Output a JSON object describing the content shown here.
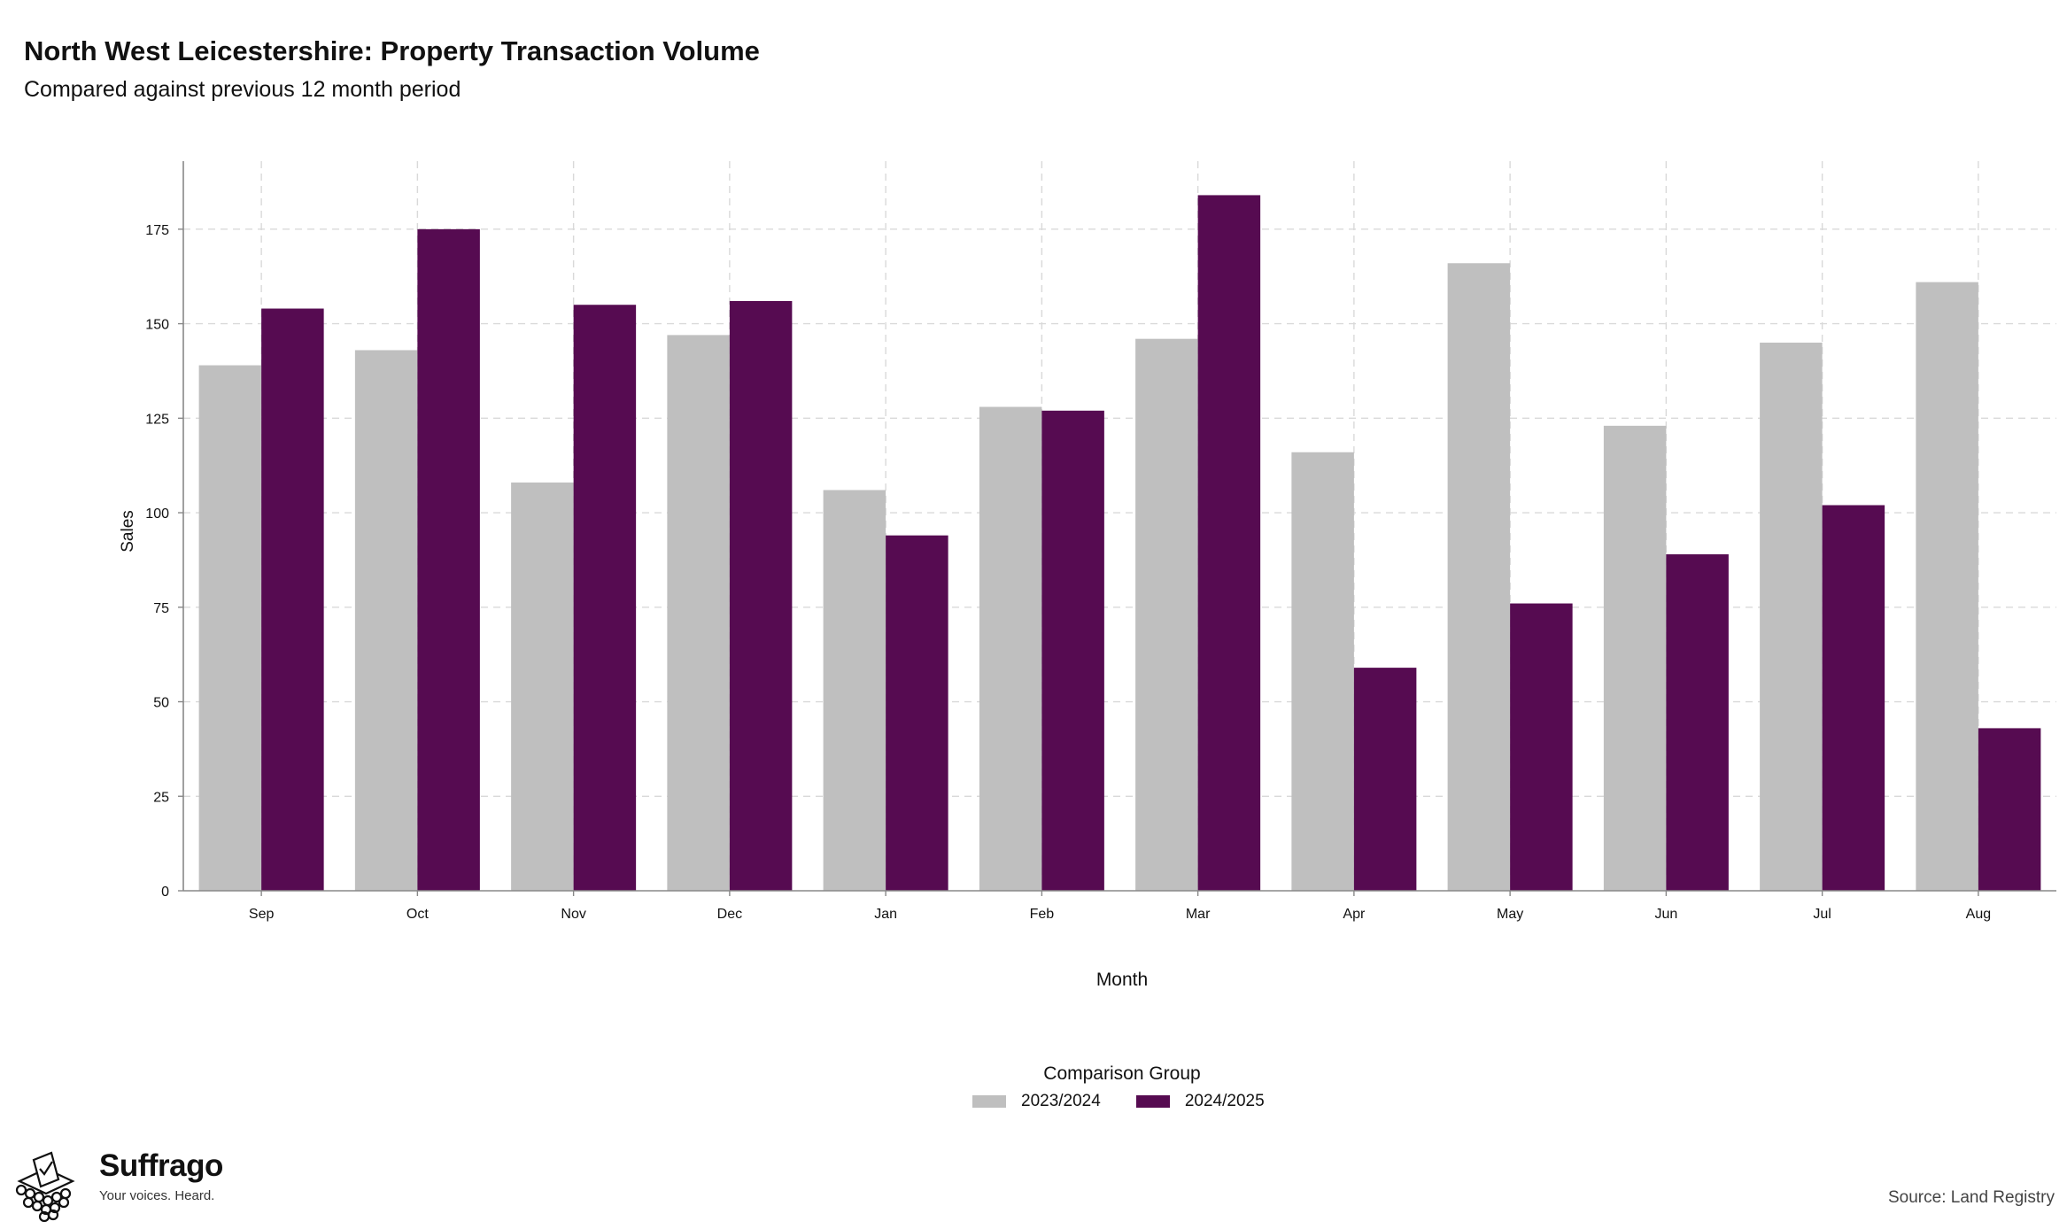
{
  "header": {
    "title": "North West Leicestershire: Property Transaction Volume",
    "subtitle": "Compared against previous 12 month period"
  },
  "chart_data": {
    "type": "bar",
    "title": "North West Leicestershire: Property Transaction Volume",
    "subtitle": "Compared against previous 12 month period",
    "xlabel": "Month",
    "ylabel": "Sales",
    "categories": [
      "Sep",
      "Oct",
      "Nov",
      "Dec",
      "Jan",
      "Feb",
      "Mar",
      "Apr",
      "May",
      "Jun",
      "Jul",
      "Aug"
    ],
    "series": [
      {
        "name": "2023/2024",
        "color": "#bfbfbf",
        "values": [
          139,
          143,
          108,
          147,
          106,
          128,
          146,
          116,
          166,
          123,
          145,
          161
        ]
      },
      {
        "name": "2024/2025",
        "color": "#560b51",
        "values": [
          154,
          175,
          155,
          156,
          94,
          127,
          184,
          59,
          76,
          89,
          102,
          43
        ]
      }
    ],
    "ylim": [
      0,
      193
    ],
    "yticks": [
      0,
      25,
      50,
      75,
      100,
      125,
      150,
      175
    ],
    "grid": true,
    "legend": {
      "title": "Comparison Group",
      "position": "bottom"
    }
  },
  "branding": {
    "name": "Suffrago",
    "tagline": "Your voices. Heard."
  },
  "source": "Source: Land Registry"
}
